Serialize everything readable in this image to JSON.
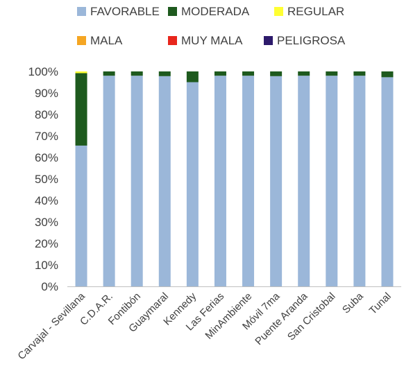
{
  "chart_data": {
    "type": "bar",
    "stacked": true,
    "categories": [
      "Carvajal - Sevillana",
      "C.D.A.R.",
      "Fontibón",
      "Guaymaral",
      "Kennedy",
      "Las Ferias",
      "MinAmbiente",
      "Móvil 7ma",
      "Puente Aranda",
      "San Cristobal",
      "Suba",
      "Tunal"
    ],
    "series": [
      {
        "name": "FAVORABLE",
        "color": "#9bb7d9",
        "values": [
          65.5,
          98,
          98,
          97.8,
          95,
          98,
          98,
          97.8,
          98,
          98,
          98,
          97.3
        ]
      },
      {
        "name": "MODERADA",
        "color": "#1e5a1e",
        "values": [
          33.7,
          2,
          2,
          2.2,
          5,
          2,
          2,
          2.2,
          2,
          2,
          2,
          2.7
        ]
      },
      {
        "name": "REGULAR",
        "color": "#ffff33",
        "values": [
          0.8,
          0,
          0,
          0,
          0,
          0,
          0,
          0,
          0,
          0,
          0,
          0
        ]
      },
      {
        "name": "MALA",
        "color": "#f5a623",
        "values": [
          0,
          0,
          0,
          0,
          0,
          0,
          0,
          0,
          0,
          0,
          0,
          0
        ]
      },
      {
        "name": "MUY MALA",
        "color": "#e8261c",
        "values": [
          0,
          0,
          0,
          0,
          0,
          0,
          0,
          0,
          0,
          0,
          0,
          0
        ]
      },
      {
        "name": "PELIGROSA",
        "color": "#2d1a6b",
        "values": [
          0,
          0,
          0,
          0,
          0,
          0,
          0,
          0,
          0,
          0,
          0,
          0
        ]
      }
    ],
    "yticks": [
      "0%",
      "10%",
      "20%",
      "30%",
      "40%",
      "50%",
      "60%",
      "70%",
      "80%",
      "90%",
      "100%"
    ],
    "ylim": [
      0,
      100
    ],
    "grid": false,
    "legend_position": "top"
  }
}
